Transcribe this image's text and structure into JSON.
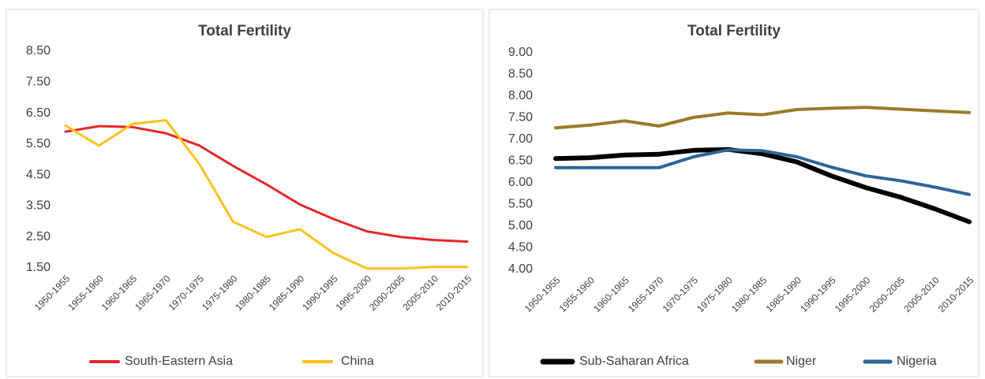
{
  "chart_data": [
    {
      "type": "line",
      "title": "Total Fertility",
      "categories": [
        "1950-1955",
        "1955-1960",
        "1960-1965",
        "1965-1970",
        "1970-1975",
        "1975-1980",
        "1980-1985",
        "1985-1990",
        "1990-1995",
        "1995-2000",
        "2000-2005",
        "2005-2010",
        "2010-2015"
      ],
      "series": [
        {
          "name": "South-Eastern Asia",
          "color": "#e8262a",
          "values": [
            5.9,
            6.08,
            6.05,
            5.85,
            5.45,
            4.8,
            4.2,
            3.55,
            3.08,
            2.68,
            2.5,
            2.4,
            2.35
          ]
        },
        {
          "name": "China",
          "color": "#fbc21a",
          "values": [
            6.1,
            5.45,
            6.15,
            6.27,
            4.85,
            3.0,
            2.5,
            2.75,
            1.98,
            1.48,
            1.48,
            1.53,
            1.53
          ]
        }
      ],
      "ylim": [
        1.5,
        8.5
      ],
      "yticks": [
        {
          "value": 1.5,
          "label": "1.50"
        },
        {
          "value": 2.5,
          "label": "2.50"
        },
        {
          "value": 3.5,
          "label": "3.50"
        },
        {
          "value": 4.5,
          "label": "4.50"
        },
        {
          "value": 5.5,
          "label": "5.50"
        },
        {
          "value": 6.5,
          "label": "6.50"
        },
        {
          "value": 7.5,
          "label": "7.50"
        },
        {
          "value": 8.5,
          "label": "8.50"
        }
      ],
      "grid": false,
      "legend": "bottom"
    },
    {
      "type": "line",
      "title": "Total Fertility",
      "categories": [
        "1950-1955",
        "1955-1960",
        "1960-1965",
        "1965-1970",
        "1970-1975",
        "1975-1980",
        "1980-1985",
        "1985-1990",
        "1990-1995",
        "1995-2000",
        "2000-2005",
        "2005-2010",
        "2010-2015"
      ],
      "series": [
        {
          "name": "Sub-Saharan Africa",
          "color": "#000000",
          "values": [
            6.56,
            6.58,
            6.64,
            6.66,
            6.75,
            6.77,
            6.67,
            6.48,
            6.16,
            5.89,
            5.67,
            5.4,
            5.1
          ]
        },
        {
          "name": "Niger",
          "color": "#9c7a2b",
          "values": [
            7.27,
            7.33,
            7.43,
            7.31,
            7.51,
            7.61,
            7.57,
            7.69,
            7.72,
            7.74,
            7.7,
            7.66,
            7.62
          ]
        },
        {
          "name": "Nigeria",
          "color": "#2e6596",
          "values": [
            6.35,
            6.35,
            6.35,
            6.35,
            6.6,
            6.76,
            6.74,
            6.6,
            6.36,
            6.16,
            6.05,
            5.9,
            5.73
          ]
        }
      ],
      "ylim": [
        4,
        9
      ],
      "yticks": [
        {
          "value": 4,
          "label": "4.00"
        },
        {
          "value": 4.5,
          "label": "4.50"
        },
        {
          "value": 5,
          "label": "5.00"
        },
        {
          "value": 5.5,
          "label": "5.50"
        },
        {
          "value": 6,
          "label": "6.00"
        },
        {
          "value": 6.5,
          "label": "6.50"
        },
        {
          "value": 7,
          "label": "7.00"
        },
        {
          "value": 7.5,
          "label": "7.50"
        },
        {
          "value": 8,
          "label": "8.00"
        },
        {
          "value": 8.5,
          "label": "8.50"
        },
        {
          "value": 9,
          "label": "9.00"
        }
      ],
      "grid": false,
      "legend": "bottom"
    }
  ]
}
